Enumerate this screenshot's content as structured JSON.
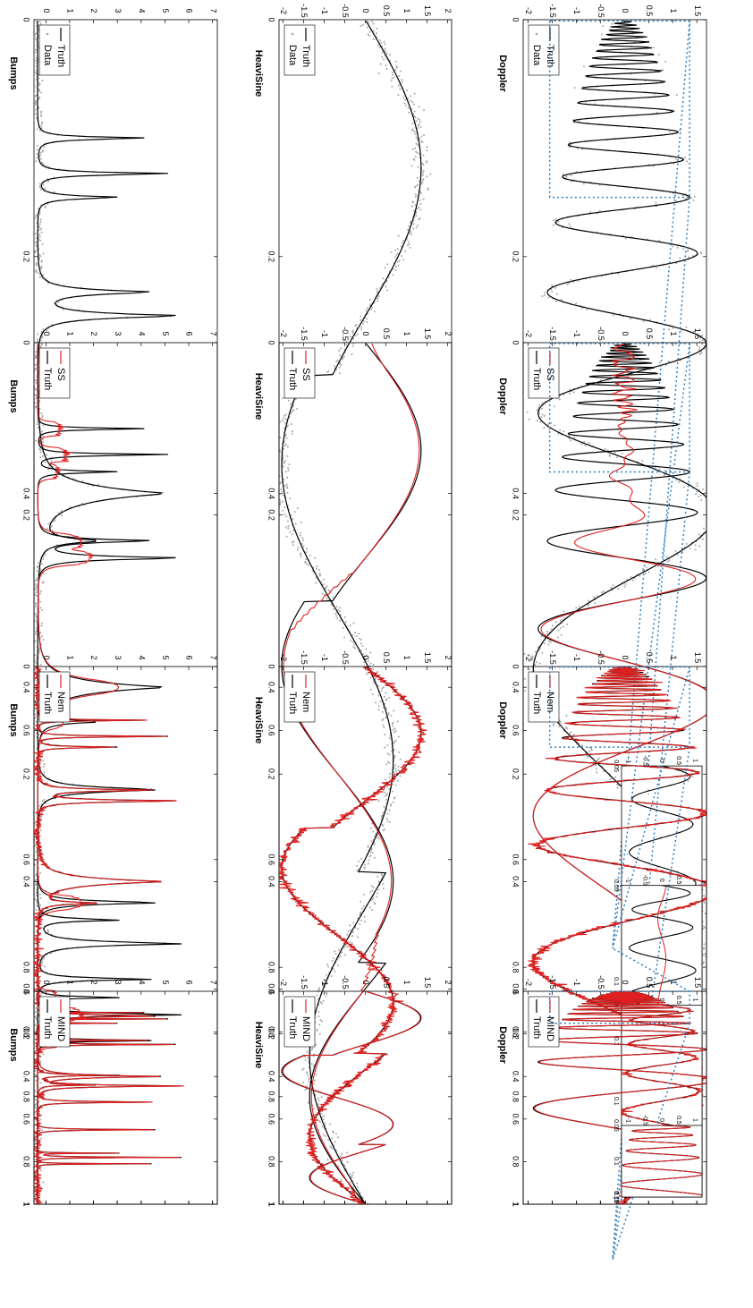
{
  "colors": {
    "truth": "#000000",
    "estimate": "#e02020",
    "data": "#a8a8a8",
    "inset_box": "#2f7fbf"
  },
  "chart_data": [
    {
      "type": "line",
      "signal": "bumps",
      "method": "Data",
      "title": "Bumps",
      "legend": [
        "Data",
        "Truth"
      ],
      "xlim": [
        0,
        1
      ],
      "ylim": [
        -0.5,
        7.2
      ],
      "xticks": [
        0,
        0.2,
        0.4,
        0.6,
        0.8,
        1
      ],
      "yticks": [
        0,
        1,
        2,
        3,
        4,
        5,
        6,
        7
      ],
      "series": [
        {
          "name": "Data",
          "kind": "scatter"
        },
        {
          "name": "Truth",
          "kind": "line"
        }
      ]
    },
    {
      "type": "line",
      "signal": "heavisine",
      "method": "Data",
      "title": "HeaviSine",
      "legend": [
        "Data",
        "Truth"
      ],
      "xlim": [
        0,
        1
      ],
      "ylim": [
        -2.1,
        2.1
      ],
      "xticks": [
        0,
        0.2,
        0.4,
        0.6,
        0.8,
        1
      ],
      "yticks": [
        2,
        1.5,
        1,
        0.5,
        0,
        -0.5,
        -1,
        -1.5,
        -2
      ],
      "series": [
        {
          "name": "Data",
          "kind": "scatter"
        },
        {
          "name": "Truth",
          "kind": "line"
        }
      ]
    },
    {
      "type": "line",
      "signal": "doppler",
      "method": "Data",
      "title": "Doppler",
      "legend": [
        "Data",
        "Truth"
      ],
      "xlim": [
        0,
        1
      ],
      "ylim": [
        -2.1,
        1.7
      ],
      "xticks": [
        0,
        0.2,
        0.4,
        0.6,
        0.8,
        1
      ],
      "yticks": [
        1.5,
        1,
        0.5,
        0,
        -0.5,
        -1,
        -1.5,
        -2
      ],
      "series": [
        {
          "name": "Data",
          "kind": "scatter"
        },
        {
          "name": "Truth",
          "kind": "line"
        }
      ],
      "inset": {
        "xlim": [
          0.05,
          0.15
        ],
        "xticks": [
          0.05,
          0.1,
          0.15
        ],
        "yticks": [
          1,
          0.5,
          0,
          -0.5,
          -1
        ]
      }
    },
    {
      "type": "line",
      "signal": "bumps",
      "method": "SS",
      "title": "Bumps",
      "legend": [
        "Truth",
        "SS"
      ],
      "xlim": [
        0,
        1
      ],
      "ylim": [
        -0.5,
        7.2
      ],
      "xticks": [
        0,
        0.2,
        0.4,
        0.6,
        0.8,
        1
      ],
      "yticks": [
        0,
        1,
        2,
        3,
        4,
        5,
        6,
        7
      ],
      "series": [
        {
          "name": "Truth",
          "kind": "line"
        },
        {
          "name": "SS",
          "kind": "line"
        }
      ]
    },
    {
      "type": "line",
      "signal": "heavisine",
      "method": "SS",
      "title": "HeaviSine",
      "legend": [
        "Truth",
        "SS"
      ],
      "xlim": [
        0,
        1
      ],
      "ylim": [
        -2.1,
        2.1
      ],
      "xticks": [
        0,
        0.2,
        0.4,
        0.6,
        0.8,
        1
      ],
      "yticks": [
        2,
        1.5,
        1,
        0.5,
        0,
        -0.5,
        -1,
        -1.5,
        -2
      ],
      "series": [
        {
          "name": "Truth",
          "kind": "line"
        },
        {
          "name": "SS",
          "kind": "line"
        }
      ]
    },
    {
      "type": "line",
      "signal": "doppler",
      "method": "SS",
      "title": "Doppler",
      "legend": [
        "Truth",
        "SS"
      ],
      "xlim": [
        0,
        1
      ],
      "ylim": [
        -2.1,
        1.7
      ],
      "xticks": [
        0,
        0.2,
        0.4,
        0.6,
        0.8,
        1
      ],
      "yticks": [
        1.5,
        1,
        0.5,
        0,
        -0.5,
        -1,
        -1.5,
        -2
      ],
      "series": [
        {
          "name": "Truth",
          "kind": "line"
        },
        {
          "name": "SS",
          "kind": "line"
        }
      ],
      "inset": {
        "xlim": [
          0.05,
          0.15
        ],
        "xticks": [
          0.05,
          0.1,
          0.15
        ],
        "yticks": [
          1,
          0.5,
          0,
          -0.5,
          -1
        ]
      }
    },
    {
      "type": "line",
      "signal": "bumps",
      "method": "Nem",
      "title": "Bumps",
      "legend": [
        "Truth",
        "Nem"
      ],
      "xlim": [
        0,
        1
      ],
      "ylim": [
        -0.5,
        7.2
      ],
      "xticks": [
        0,
        0.2,
        0.4,
        0.6,
        0.8,
        1
      ],
      "yticks": [
        0,
        1,
        2,
        3,
        4,
        5,
        6,
        7
      ],
      "series": [
        {
          "name": "Truth",
          "kind": "line"
        },
        {
          "name": "Nem",
          "kind": "line"
        }
      ]
    },
    {
      "type": "line",
      "signal": "heavisine",
      "method": "Nem",
      "title": "HeaviSine",
      "legend": [
        "Truth",
        "Nem"
      ],
      "xlim": [
        0,
        1
      ],
      "ylim": [
        -2.1,
        2.1
      ],
      "xticks": [
        0,
        0.2,
        0.4,
        0.6,
        0.8,
        1
      ],
      "yticks": [
        2,
        1.5,
        1,
        0.5,
        0,
        -0.5,
        -1,
        -1.5,
        -2
      ],
      "series": [
        {
          "name": "Truth",
          "kind": "line"
        },
        {
          "name": "Nem",
          "kind": "line"
        }
      ]
    },
    {
      "type": "line",
      "signal": "doppler",
      "method": "Nem",
      "title": "Doppler",
      "legend": [
        "Truth",
        "Nem"
      ],
      "xlim": [
        0,
        1
      ],
      "ylim": [
        -2.1,
        1.7
      ],
      "xticks": [
        0,
        0.2,
        0.4,
        0.6,
        0.8,
        1
      ],
      "yticks": [
        1.5,
        1,
        0.5,
        0,
        -0.5,
        -1,
        -1.5,
        -2
      ],
      "series": [
        {
          "name": "Truth",
          "kind": "line"
        },
        {
          "name": "Nem",
          "kind": "line"
        }
      ],
      "inset": {
        "xlim": [
          0.05,
          0.15
        ],
        "xticks": [
          0.05,
          0.1,
          0.15
        ],
        "yticks": [
          1,
          0.5,
          0,
          -0.5,
          -1
        ]
      }
    },
    {
      "type": "line",
      "signal": "bumps",
      "method": "MIND",
      "title": "Bumps",
      "legend": [
        "Truth",
        "MIND"
      ],
      "xlim": [
        0,
        1
      ],
      "ylim": [
        -0.5,
        7.2
      ],
      "xticks": [
        0,
        0.2,
        0.4,
        0.6,
        0.8,
        1
      ],
      "yticks": [
        0,
        1,
        2,
        3,
        4,
        5,
        6,
        7
      ],
      "series": [
        {
          "name": "Truth",
          "kind": "line"
        },
        {
          "name": "MIND",
          "kind": "line"
        }
      ]
    },
    {
      "type": "line",
      "signal": "heavisine",
      "method": "MIND",
      "title": "HeaviSine",
      "legend": [
        "Truth",
        "MIND"
      ],
      "xlim": [
        0,
        1
      ],
      "ylim": [
        -2.1,
        2.1
      ],
      "xticks": [
        0,
        0.2,
        0.4,
        0.6,
        0.8,
        1
      ],
      "yticks": [
        2,
        1.5,
        1,
        0.5,
        0,
        -0.5,
        -1,
        -1.5,
        -2
      ],
      "series": [
        {
          "name": "Truth",
          "kind": "line"
        },
        {
          "name": "MIND",
          "kind": "line"
        }
      ]
    },
    {
      "type": "line",
      "signal": "doppler",
      "method": "MIND",
      "title": "Doppler",
      "legend": [
        "Truth",
        "MIND"
      ],
      "xlim": [
        0,
        1
      ],
      "ylim": [
        -2.1,
        1.7
      ],
      "xticks": [
        0,
        0.2,
        0.4,
        0.6,
        0.8,
        1
      ],
      "yticks": [
        1.5,
        1,
        0.5,
        0,
        -0.5,
        -1,
        -1.5,
        -2
      ],
      "series": [
        {
          "name": "Truth",
          "kind": "line"
        },
        {
          "name": "MIND",
          "kind": "line"
        }
      ],
      "inset": {
        "xlim": [
          0.05,
          0.15
        ],
        "xticks": [
          0.05,
          0.1,
          0.15
        ],
        "yticks": [
          1,
          0.5,
          0,
          -0.5,
          -1
        ]
      }
    }
  ]
}
